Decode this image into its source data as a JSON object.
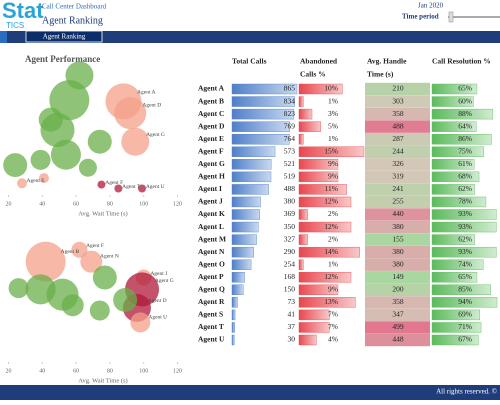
{
  "header": {
    "logo": "Stat",
    "logo_sub": "TICS",
    "subtitle": "Call Center Dashboard",
    "title": "Agent Ranking",
    "period": "Jan 2020",
    "period_label": "Time period"
  },
  "tab": "Agent Ranking",
  "panel_title": "Agent Performance",
  "chart_data": [
    {
      "type": "bubble",
      "xlabel": "Avg. Wait Time (s)",
      "xlim": [
        15,
        125
      ],
      "xticks": [
        20,
        40,
        60,
        80,
        100,
        120
      ],
      "ylim": [
        0,
        100
      ],
      "points": {
        "x": [
          88,
          92,
          95,
          56,
          49,
          74,
          54,
          24,
          67,
          39,
          45,
          62,
          28,
          41,
          75,
          85,
          99
        ],
        "y": [
          72,
          63,
          41,
          73,
          50,
          41,
          31,
          23,
          21,
          27,
          58,
          92,
          9,
          13,
          8,
          5,
          5
        ],
        "size": [
          18,
          16,
          14,
          20,
          17,
          12,
          15,
          12,
          9,
          10,
          12,
          14,
          5,
          5,
          4,
          4,
          4
        ],
        "labels": [
          "Agent A",
          "Agent D",
          "Agent G",
          null,
          null,
          null,
          null,
          null,
          null,
          null,
          null,
          null,
          "Agent E",
          null,
          "Agent F",
          "Agent T",
          "Agent U"
        ],
        "colors": [
          "#f4a08a",
          "#f4a08a",
          "#f4a08a",
          "#6aaf4a",
          "#6aaf4a",
          "#6aaf4a",
          "#6aaf4a",
          "#6aaf4a",
          "#6aaf4a",
          "#6aaf4a",
          "#6aaf4a",
          "#6aaf4a",
          "#f4a08a",
          "#f4a08a",
          "#b0183a",
          "#b0183a",
          "#b0183a"
        ]
      }
    },
    {
      "type": "bubble",
      "xlabel": "Avg. Wait Time (s)",
      "xlim": [
        15,
        125
      ],
      "xticks": [
        20,
        40,
        60,
        80,
        100,
        120
      ],
      "ylim": [
        0,
        100
      ],
      "points": {
        "x": [
          62,
          42,
          69,
          100,
          99,
          96,
          98,
          39,
          52,
          77,
          89,
          26,
          74,
          58
        ],
        "y": [
          85,
          76,
          76,
          64,
          55,
          41,
          30,
          55,
          51,
          64,
          47,
          56,
          39,
          43
        ],
        "size": [
          8,
          20,
          11,
          8,
          17,
          14,
          10,
          15,
          16,
          12,
          12,
          10,
          10,
          11
        ],
        "labels": [
          "Agent F",
          "Agent B",
          "Agent N",
          "Agent J",
          "Agent G",
          "Agent D",
          "Agent U",
          null,
          null,
          null,
          null,
          null,
          null,
          null
        ],
        "colors": [
          "#f4a08a",
          "#f4a08a",
          "#f4a08a",
          "#f4a08a",
          "#b0183a",
          "#b0183a",
          "#f4a08a",
          "#6aaf4a",
          "#6aaf4a",
          "#6aaf4a",
          "#6aaf4a",
          "#6aaf4a",
          "#6aaf4a",
          "#6aaf4a"
        ]
      }
    }
  ],
  "table": {
    "columns": [
      [
        "Total Calls"
      ],
      [
        "Abandoned",
        "Calls %"
      ],
      [
        "Avg. Handle",
        "Time (s)"
      ],
      [
        "Call Resolution %"
      ]
    ],
    "agents": [
      "Agent A",
      "Agent B",
      "Agent C",
      "Agent D",
      "Agent E",
      "Agent F",
      "Agent G",
      "Agent H",
      "Agent I",
      "Agent J",
      "Agent K",
      "Agent L",
      "Agent M",
      "Agent N",
      "Agent O",
      "Agent P",
      "Agent Q",
      "Agent R",
      "Agent S",
      "Agent T",
      "Agent U"
    ],
    "total_calls": [
      865,
      834,
      823,
      769,
      764,
      573,
      521,
      519,
      488,
      380,
      369,
      350,
      327,
      290,
      254,
      168,
      150,
      73,
      41,
      37,
      30
    ],
    "abandoned": {
      "values": [
        10,
        1,
        3,
        5,
        1,
        15,
        9,
        9,
        11,
        12,
        2,
        12,
        2,
        14,
        1,
        12,
        9,
        13,
        7,
        7,
        4
      ],
      "value_labels": [
        "10%",
        "1%",
        "3%",
        "5%",
        "1%",
        "15%",
        "9%",
        "9%",
        "11%",
        "12%",
        "2%",
        "12%",
        "2%",
        "14%",
        "1%",
        "12%",
        "9%",
        "13%",
        "7%",
        "7%",
        "4%"
      ]
    },
    "handle_time": [
      210,
      303,
      358,
      488,
      287,
      244,
      326,
      319,
      241,
      255,
      440,
      380,
      155,
      380,
      380,
      149,
      200,
      358,
      347,
      499,
      448
    ],
    "resolution": {
      "values": [
        65,
        60,
        88,
        64,
        86,
        75,
        61,
        68,
        62,
        78,
        93,
        93,
        62,
        93,
        74,
        65,
        85,
        94,
        69,
        71,
        67
      ],
      "value_labels": [
        "65%",
        "60%",
        "88%",
        "64%",
        "86%",
        "75%",
        "61%",
        "68%",
        "62%",
        "78%",
        "93%",
        "93%",
        "62%",
        "93%",
        "74%",
        "65%",
        "85%",
        "94%",
        "69%",
        "71%",
        "67%"
      ]
    }
  },
  "footer": "All rights reserved. ©"
}
